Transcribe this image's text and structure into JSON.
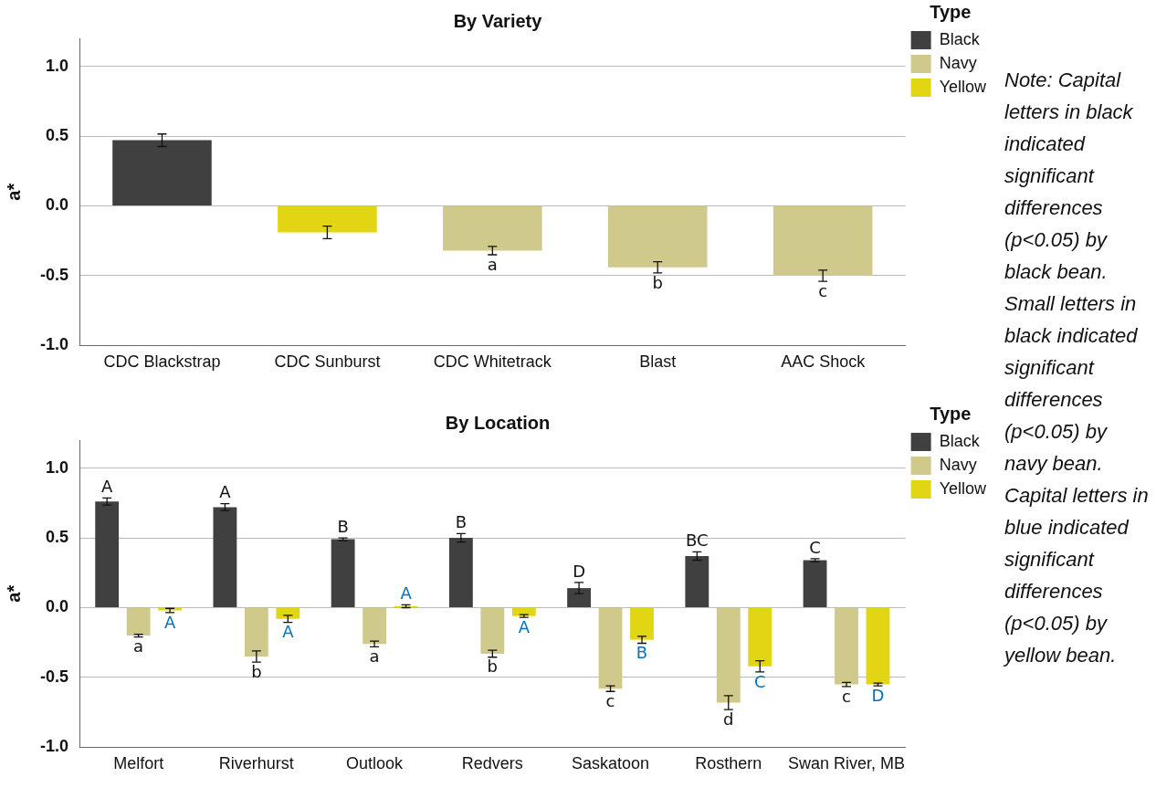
{
  "chart_data": [
    {
      "type": "bar",
      "title": "By Variety",
      "ylabel": "a*",
      "legend_title": "Type",
      "legend": "top right",
      "grid": "y",
      "categories": [
        "CDC Blackstrap",
        "CDC Sunburst",
        "CDC Whitetrack",
        "Blast",
        "AAC Shock"
      ],
      "ylim": [
        -1.0,
        1.2
      ],
      "yticks": [
        {
          "value": -1,
          "label": "-1.0"
        },
        {
          "value": -0.5,
          "label": "-0.5"
        },
        {
          "value": 0,
          "label": "0.0"
        },
        {
          "value": 0.5,
          "label": "0.5"
        },
        {
          "value": 1,
          "label": "1.0"
        }
      ],
      "series": [
        {
          "name": "Black",
          "color": "#404040",
          "values": [
            0.47,
            null,
            null,
            null,
            null
          ],
          "errors": [
            0.045,
            null,
            null,
            null,
            null
          ]
        },
        {
          "name": "Navy",
          "color": "#cfc98c",
          "values": [
            null,
            null,
            -0.32,
            -0.44,
            -0.5
          ],
          "errors": [
            null,
            null,
            0.03,
            0.04,
            0.04
          ],
          "value_labels": [
            null,
            null,
            "a",
            "b",
            "c"
          ]
        },
        {
          "name": "Yellow",
          "color": "#e2d614",
          "values": [
            null,
            -0.19,
            null,
            null,
            null
          ],
          "errors": [
            null,
            0.045,
            null,
            null,
            null
          ]
        }
      ]
    },
    {
      "type": "bar",
      "title": "By Location",
      "ylabel": "a*",
      "legend_title": "Type",
      "legend": "top right",
      "grid": "y",
      "categories": [
        "Melfort",
        "Riverhurst",
        "Outlook",
        "Redvers",
        "Saskatoon",
        "Rosthern",
        "Swan River, MB"
      ],
      "ylim": [
        -1.0,
        1.2
      ],
      "yticks": [
        {
          "value": -1,
          "label": "-1.0"
        },
        {
          "value": -0.5,
          "label": "-0.5"
        },
        {
          "value": 0,
          "label": "0.0"
        },
        {
          "value": 0.5,
          "label": "0.5"
        },
        {
          "value": 1,
          "label": "1.0"
        }
      ],
      "series": [
        {
          "name": "Black",
          "color": "#404040",
          "values": [
            0.76,
            0.72,
            0.49,
            0.5,
            0.14,
            0.37,
            0.34
          ],
          "errors": [
            0.025,
            0.025,
            0.01,
            0.03,
            0.04,
            0.03,
            0.01
          ],
          "value_labels": [
            "A",
            "A",
            "B",
            "B",
            "D",
            "BC",
            "C"
          ]
        },
        {
          "name": "Navy",
          "color": "#cfc98c",
          "values": [
            -0.2,
            -0.35,
            -0.26,
            -0.33,
            -0.58,
            -0.68,
            -0.55
          ],
          "errors": [
            0.01,
            0.04,
            0.02,
            0.025,
            0.02,
            0.05,
            0.015
          ],
          "value_labels": [
            "a",
            "b",
            "a",
            "b",
            "c",
            "d",
            "c"
          ]
        },
        {
          "name": "Yellow",
          "color": "#e2d614",
          "values": [
            -0.02,
            -0.08,
            0.01,
            -0.06,
            -0.23,
            -0.42,
            -0.55
          ],
          "errors": [
            0.015,
            0.025,
            0.01,
            0.01,
            0.025,
            0.04,
            0.01
          ],
          "value_labels": [
            "A",
            "A",
            "A",
            "A",
            "B",
            "C",
            "D"
          ]
        }
      ]
    },
    {
      "type": "other",
      "annotations": [
        "Note: Capital letters in black indicated significant differences (p<0.05) by black bean.",
        "Small letters in black indicated significant differences (p<0.05) by navy bean.",
        "Capital letters in blue indicated significant differences (p<0.05) by yellow bean."
      ]
    }
  ]
}
